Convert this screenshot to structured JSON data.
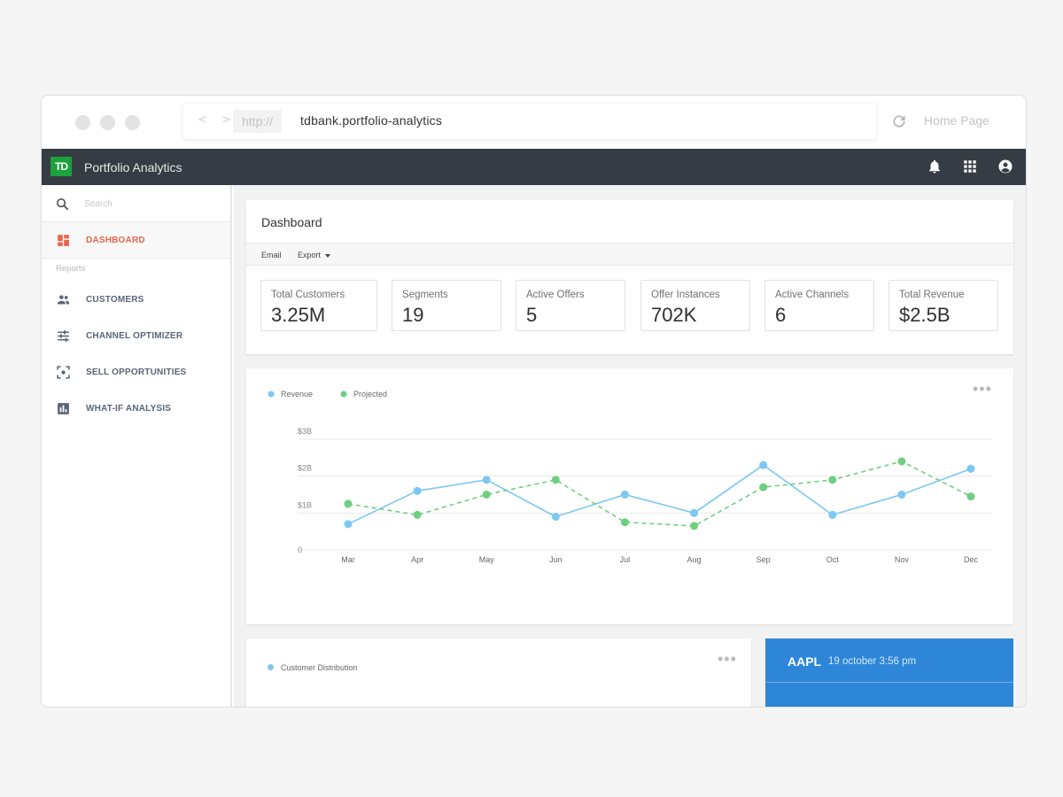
{
  "browser": {
    "protocol": "http://",
    "url": "tdbank.portfolio-analytics",
    "home_label": "Home Page",
    "nav_arrows": "< >"
  },
  "app": {
    "logo_text": "TD",
    "title": "Portfolio Analytics"
  },
  "sidebar": {
    "search_placeholder": "Search",
    "active_item": "DASHBOARD",
    "group_label": "Reports",
    "items": [
      {
        "label": "CUSTOMERS",
        "icon": "people-icon"
      },
      {
        "label": "CHANNEL OPTIMIZER",
        "icon": "sliders-icon"
      },
      {
        "label": "SELL OPPORTUNITIES",
        "icon": "focus-target-icon"
      },
      {
        "label": "WHAT-IF ANALYSIS",
        "icon": "bar-chart-icon"
      }
    ]
  },
  "dashboard": {
    "title": "Dashboard",
    "toolbar": {
      "email_label": "Email",
      "export_label": "Export"
    },
    "kpis": [
      {
        "label": "Total Customers",
        "value": "3.25M"
      },
      {
        "label": "Segments",
        "value": "19"
      },
      {
        "label": "Active Offers",
        "value": "5"
      },
      {
        "label": "Offer Instances",
        "value": "702K"
      },
      {
        "label": "Active Channels",
        "value": "6"
      },
      {
        "label": "Total Revenue",
        "value": "$2.5B"
      }
    ]
  },
  "chart_data": {
    "type": "line",
    "categories": [
      "Mar",
      "Apr",
      "May",
      "Jun",
      "Jul",
      "Aug",
      "Sep",
      "Oct",
      "Nov",
      "Dec"
    ],
    "y_ticks": [
      "0",
      "$1B",
      "$2B",
      "$3B"
    ],
    "ylim": [
      0,
      3
    ],
    "grid": true,
    "legend_position": "top-left",
    "series": [
      {
        "name": "Revenue",
        "color": "#7cc8f2",
        "style": "solid",
        "values": [
          0.7,
          1.6,
          1.9,
          0.9,
          1.5,
          1.0,
          2.3,
          0.95,
          1.5,
          2.2
        ]
      },
      {
        "name": "Projected",
        "color": "#6fcf80",
        "style": "dashed",
        "values": [
          1.25,
          0.95,
          1.5,
          1.9,
          0.75,
          0.65,
          1.7,
          1.9,
          2.4,
          1.45
        ]
      }
    ]
  },
  "distribution": {
    "legend_label": "Customer Distribution",
    "legend_color": "#7cc8f2"
  },
  "ticker": {
    "symbol": "AAPL",
    "timestamp": "19 october 3:56 pm"
  },
  "colors": {
    "header_bg": "#363c44",
    "accent_active": "#e8674d",
    "brand_green": "#1ba23a",
    "ticker_bg": "#2e86d8"
  }
}
